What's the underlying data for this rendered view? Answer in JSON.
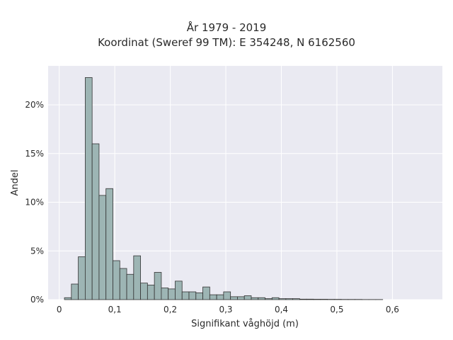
{
  "chart_data": {
    "type": "bar",
    "title_lines": [
      "År 1979 - 2019",
      "Koordinat (Sweref 99 TM): E 354248, N 6162560"
    ],
    "xlabel": "Signifikant våghöjd (m)",
    "ylabel": "Andel",
    "xlim": [
      -0.02,
      0.69
    ],
    "ylim": [
      0,
      0.24
    ],
    "x_ticks": [
      0,
      0.1,
      0.2,
      0.3,
      0.4,
      0.5,
      0.6
    ],
    "x_tick_labels": [
      "0",
      "0,1",
      "0,2",
      "0,3",
      "0,4",
      "0,5",
      "0,6"
    ],
    "y_ticks": [
      0,
      0.05,
      0.1,
      0.15,
      0.2
    ],
    "y_tick_labels": [
      "0%",
      "5%",
      "10%",
      "15%",
      "20%"
    ],
    "bin_start": 0.0094,
    "bin_width": 0.01246,
    "values": [
      0.002,
      0.016,
      0.044,
      0.228,
      0.16,
      0.107,
      0.114,
      0.04,
      0.032,
      0.026,
      0.045,
      0.017,
      0.015,
      0.028,
      0.012,
      0.011,
      0.019,
      0.008,
      0.008,
      0.007,
      0.013,
      0.005,
      0.005,
      0.008,
      0.003,
      0.003,
      0.004,
      0.002,
      0.002,
      0.001,
      0.002,
      0.001,
      0.001,
      0.001,
      0.0005,
      0.0005,
      0.0004,
      0.0004,
      0.0003,
      0.0003,
      0.0002,
      0.0002,
      0.0002,
      0.0001,
      0.0001,
      0.0001
    ],
    "grid": true,
    "colors": {
      "bar_fill": "#9db5b4",
      "bar_edge": "#333333",
      "plot_bg": "#eaeaf2",
      "grid": "#ffffff"
    }
  }
}
